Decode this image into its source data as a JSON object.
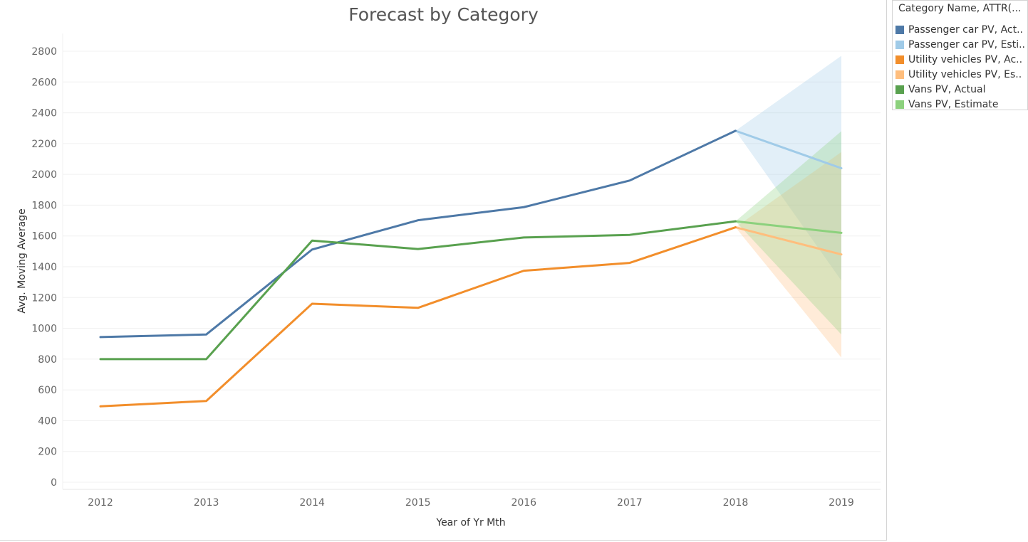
{
  "chart_data": {
    "type": "line",
    "title": "Forecast by Category",
    "xlabel": "Year of Yr Mth",
    "ylabel": "Avg. Moving Average",
    "categories": [
      "2012",
      "2013",
      "2014",
      "2015",
      "2016",
      "2017",
      "2018",
      "2019"
    ],
    "y_ticks": [
      0,
      200,
      400,
      600,
      800,
      1000,
      1200,
      1400,
      1600,
      1800,
      2000,
      2200,
      2400,
      2600,
      2800
    ],
    "ylim": [
      0,
      2800
    ],
    "grid": true,
    "legend": {
      "title": "Category Name, ATTR(...",
      "placement": "right",
      "entries": [
        {
          "label": "Passenger car PV, Act..",
          "color": "#4e79a7"
        },
        {
          "label": "Passenger car PV, Esti..",
          "color": "#a0cbe8"
        },
        {
          "label": "Utility vehicles PV, Ac..",
          "color": "#f28e2b"
        },
        {
          "label": "Utility vehicles PV, Es..",
          "color": "#ffbe7d"
        },
        {
          "label": "Vans PV, Actual",
          "color": "#59a14f"
        },
        {
          "label": "Vans PV, Estimate",
          "color": "#8cd17d"
        }
      ]
    },
    "series": [
      {
        "name": "Passenger car PV, Actual",
        "color": "#4e79a7",
        "values": [
          943,
          960,
          1512,
          1702,
          1787,
          1960,
          2283,
          null
        ]
      },
      {
        "name": "Passenger car PV, Estimate",
        "color": "#a0cbe8",
        "values": [
          null,
          null,
          null,
          null,
          null,
          null,
          2283,
          2040
        ],
        "band": {
          "upper": [
            2283,
            2770
          ],
          "lower": [
            2283,
            1310
          ]
        }
      },
      {
        "name": "Utility vehicles PV, Actual",
        "color": "#f28e2b",
        "values": [
          493,
          528,
          1160,
          1133,
          1374,
          1425,
          1656,
          null
        ]
      },
      {
        "name": "Utility vehicles PV, Estimate",
        "color": "#ffbe7d",
        "values": [
          null,
          null,
          null,
          null,
          null,
          null,
          1656,
          1480
        ],
        "band": {
          "upper": [
            1656,
            2145
          ],
          "lower": [
            1656,
            810
          ]
        }
      },
      {
        "name": "Vans PV, Actual",
        "color": "#59a14f",
        "values": [
          800,
          800,
          1570,
          1515,
          1590,
          1607,
          1695,
          null
        ]
      },
      {
        "name": "Vans PV, Estimate",
        "color": "#8cd17d",
        "values": [
          null,
          null,
          null,
          null,
          null,
          null,
          1695,
          1620
        ],
        "band": {
          "upper": [
            1695,
            2280
          ],
          "lower": [
            1695,
            960
          ]
        }
      }
    ]
  }
}
